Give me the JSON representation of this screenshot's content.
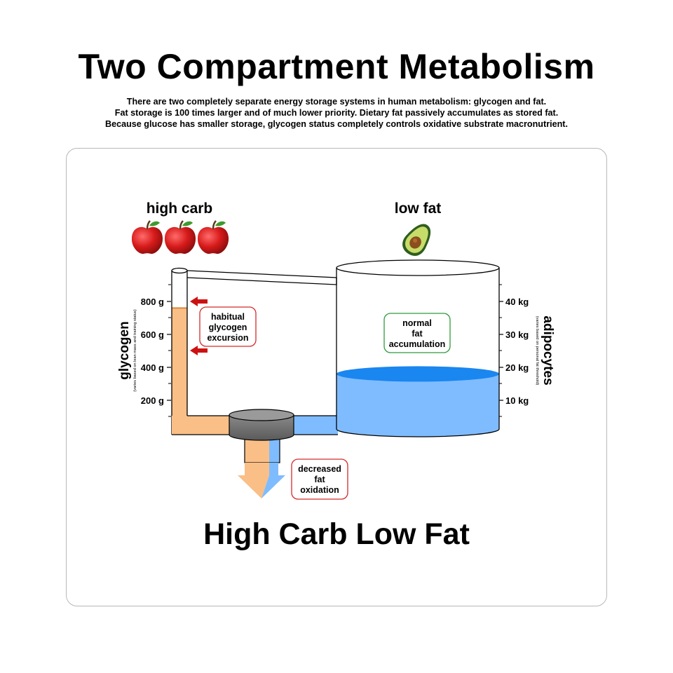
{
  "header": {
    "title": "Two Compartment Metabolism",
    "subtitle_lines": [
      "There are two completely separate energy storage systems in human metabolism:  glycogen and fat.",
      "Fat storage is 100 times larger and of much lower priority.  Dietary fat passively accumulates as stored fat.",
      "Because glucose has smaller storage, glycogen status completely controls oxidative substrate macronutrient."
    ]
  },
  "diagram": {
    "carb_label": "high carb",
    "fat_label": "low fat",
    "carb_icon": "apple-icon",
    "fat_icon": "avocado-icon",
    "glycogen_axis": {
      "label": "glycogen",
      "note": "(varies based on lean mass and training status)",
      "ticks": [
        "800 g",
        "600 g",
        "400 g",
        "200 g"
      ]
    },
    "adipocytes_axis": {
      "label": "adipocytes",
      "note": "(varies based on personal fat threshold)",
      "ticks": [
        "40 kg",
        "30 kg",
        "20 kg",
        "10 kg"
      ]
    },
    "callouts": {
      "glycogen": [
        "habitual",
        "glycogen",
        "excursion"
      ],
      "fat": [
        "normal",
        "fat",
        "accumulation"
      ],
      "oxidation": [
        "decreased",
        "fat",
        "oxidation"
      ]
    },
    "glycogen_level_g": 760,
    "fat_level_kg": 18,
    "colors": {
      "glycogen": "#f9bf86",
      "fat": "#7fbcff",
      "fat_surface": "#1a86f0",
      "arrow_red": "#cc1111",
      "box_red": "#d42a2a",
      "box_green": "#2f9a3c"
    },
    "caption": "High Carb Low Fat"
  }
}
